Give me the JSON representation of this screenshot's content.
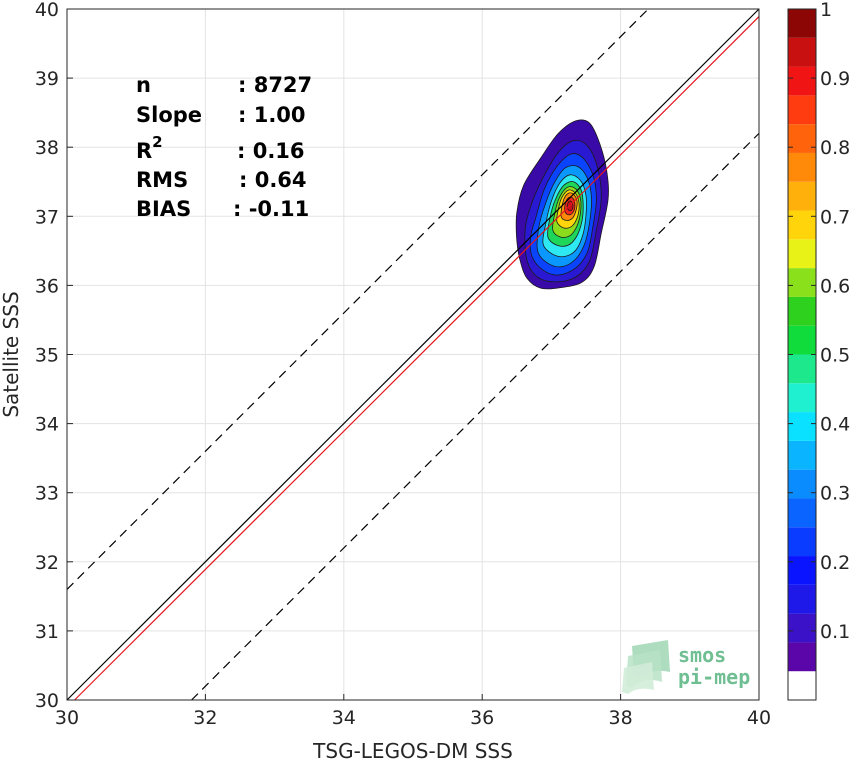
{
  "chart_data": {
    "type": "scatter",
    "subtype": "density-contour",
    "title": "",
    "xlabel": "TSG-LEGOS-DM SSS",
    "ylabel": "Satellite SSS",
    "xlim": [
      30,
      40
    ],
    "ylim": [
      30,
      40
    ],
    "xticks": [
      "30",
      "32",
      "34",
      "36",
      "38",
      "40"
    ],
    "yticks": [
      "30",
      "31",
      "32",
      "33",
      "34",
      "35",
      "36",
      "37",
      "38",
      "39",
      "40"
    ],
    "grid": true,
    "stats": [
      {
        "label": "n",
        "value": ": 8727"
      },
      {
        "label": "Slope",
        "value": ": 1.00"
      },
      {
        "label": "R",
        "superscript": "2",
        "value": ": 0.16"
      },
      {
        "label": "RMS",
        "value": ": 0.64"
      },
      {
        "label": "BIAS",
        "value": ": -0.11"
      }
    ],
    "lines": [
      {
        "name": "identity",
        "color": "#000000",
        "style": "solid",
        "slope": 1,
        "intercept": 0
      },
      {
        "name": "regression",
        "color": "#e8141c",
        "style": "solid",
        "slope": 1.0,
        "intercept": -0.11
      },
      {
        "name": "upper-bound",
        "color": "#000000",
        "style": "dashed",
        "slope": 1,
        "intercept": 1.6
      },
      {
        "name": "lower-bound",
        "color": "#000000",
        "style": "dashed",
        "slope": 1,
        "intercept": -1.8
      }
    ],
    "density": {
      "center": [
        37.3,
        37.2
      ],
      "levels": [
        0.05,
        0.1,
        0.15,
        0.2,
        0.25,
        0.3,
        0.35,
        0.4,
        0.45,
        0.5,
        0.55,
        0.6,
        0.65,
        0.7,
        0.75,
        0.8,
        0.85,
        0.9,
        0.95
      ],
      "level_colors": [
        "#3a0aa8",
        "#2a19d2",
        "#1c28f0",
        "#0a44ff",
        "#0a6cff",
        "#0a98ff",
        "#10c8ff",
        "#2ee8f2",
        "#22e8b0",
        "#1ed65a",
        "#2ec82a",
        "#8adc1c",
        "#e8f01c",
        "#ffd60a",
        "#ffb008",
        "#ff8a0a",
        "#ff5a0e",
        "#f2261c",
        "#c8101a"
      ],
      "contours": [
        {
          "level": 0.05,
          "outline": [
            [
              36.55,
              36.35
            ],
            [
              36.65,
              36.1
            ],
            [
              36.85,
              35.96
            ],
            [
              37.15,
              35.97
            ],
            [
              37.45,
              36.05
            ],
            [
              37.62,
              36.28
            ],
            [
              37.72,
              36.75
            ],
            [
              37.82,
              37.25
            ],
            [
              37.8,
              37.65
            ],
            [
              37.7,
              38.05
            ],
            [
              37.55,
              38.35
            ],
            [
              37.35,
              38.38
            ],
            [
              37.1,
              38.2
            ],
            [
              36.85,
              37.85
            ],
            [
              36.6,
              37.45
            ],
            [
              36.5,
              37.05
            ],
            [
              36.5,
              36.65
            ]
          ]
        },
        {
          "level": 0.1,
          "outline": [
            [
              36.65,
              36.35
            ],
            [
              36.8,
              36.12
            ],
            [
              37.05,
              36.05
            ],
            [
              37.35,
              36.12
            ],
            [
              37.55,
              36.35
            ],
            [
              37.65,
              36.8
            ],
            [
              37.72,
              37.25
            ],
            [
              37.68,
              37.65
            ],
            [
              37.55,
              37.98
            ],
            [
              37.35,
              38.1
            ],
            [
              37.12,
              37.95
            ],
            [
              36.9,
              37.6
            ],
            [
              36.72,
              37.2
            ],
            [
              36.62,
              36.8
            ]
          ]
        },
        {
          "level": 0.2,
          "outline": [
            [
              36.72,
              36.42
            ],
            [
              36.88,
              36.22
            ],
            [
              37.1,
              36.15
            ],
            [
              37.35,
              36.25
            ],
            [
              37.52,
              36.48
            ],
            [
              37.6,
              36.85
            ],
            [
              37.65,
              37.25
            ],
            [
              37.6,
              37.6
            ],
            [
              37.45,
              37.85
            ],
            [
              37.28,
              37.9
            ],
            [
              37.08,
              37.72
            ],
            [
              36.9,
              37.4
            ],
            [
              36.78,
              37.0
            ],
            [
              36.7,
              36.7
            ]
          ]
        },
        {
          "level": 0.3,
          "outline": [
            [
              36.8,
              36.5
            ],
            [
              36.95,
              36.32
            ],
            [
              37.15,
              36.27
            ],
            [
              37.35,
              36.38
            ],
            [
              37.48,
              36.6
            ],
            [
              37.55,
              36.9
            ],
            [
              37.58,
              37.25
            ],
            [
              37.52,
              37.55
            ],
            [
              37.38,
              37.72
            ],
            [
              37.2,
              37.7
            ],
            [
              37.05,
              37.5
            ],
            [
              36.92,
              37.2
            ],
            [
              36.82,
              36.85
            ]
          ]
        },
        {
          "level": 0.4,
          "outline": [
            [
              36.88,
              36.6
            ],
            [
              37.02,
              36.45
            ],
            [
              37.2,
              36.42
            ],
            [
              37.36,
              36.52
            ],
            [
              37.46,
              36.75
            ],
            [
              37.5,
              37.02
            ],
            [
              37.5,
              37.3
            ],
            [
              37.42,
              37.52
            ],
            [
              37.27,
              37.6
            ],
            [
              37.12,
              37.48
            ],
            [
              37.0,
              37.22
            ],
            [
              36.92,
              36.9
            ]
          ]
        },
        {
          "level": 0.5,
          "outline": [
            [
              36.95,
              36.7
            ],
            [
              37.08,
              36.58
            ],
            [
              37.24,
              36.58
            ],
            [
              37.36,
              36.7
            ],
            [
              37.44,
              36.92
            ],
            [
              37.46,
              37.15
            ],
            [
              37.43,
              37.38
            ],
            [
              37.32,
              37.5
            ],
            [
              37.18,
              37.45
            ],
            [
              37.06,
              37.25
            ],
            [
              36.98,
              36.98
            ]
          ]
        },
        {
          "level": 0.6,
          "outline": [
            [
              37.02,
              36.8
            ],
            [
              37.13,
              36.7
            ],
            [
              37.27,
              36.72
            ],
            [
              37.37,
              36.86
            ],
            [
              37.42,
              37.05
            ],
            [
              37.42,
              37.25
            ],
            [
              37.35,
              37.4
            ],
            [
              37.23,
              37.42
            ],
            [
              37.12,
              37.28
            ],
            [
              37.05,
              37.05
            ]
          ]
        },
        {
          "level": 0.7,
          "outline": [
            [
              37.08,
              36.92
            ],
            [
              37.18,
              36.83
            ],
            [
              37.3,
              36.86
            ],
            [
              37.38,
              37.0
            ],
            [
              37.4,
              37.18
            ],
            [
              37.35,
              37.33
            ],
            [
              37.25,
              37.38
            ],
            [
              37.15,
              37.27
            ],
            [
              37.1,
              37.1
            ]
          ]
        },
        {
          "level": 0.8,
          "outline": [
            [
              37.14,
              37.0
            ],
            [
              37.22,
              36.94
            ],
            [
              37.31,
              36.98
            ],
            [
              37.36,
              37.1
            ],
            [
              37.37,
              37.22
            ],
            [
              37.32,
              37.32
            ],
            [
              37.24,
              37.33
            ],
            [
              37.17,
              37.22
            ]
          ]
        },
        {
          "level": 0.9,
          "outline": [
            [
              37.2,
              37.06
            ],
            [
              37.26,
              37.02
            ],
            [
              37.32,
              37.07
            ],
            [
              37.34,
              37.17
            ],
            [
              37.31,
              37.26
            ],
            [
              37.25,
              37.27
            ],
            [
              37.2,
              37.18
            ]
          ]
        },
        {
          "level": 0.95,
          "outline": [
            [
              37.24,
              37.1
            ],
            [
              37.28,
              37.08
            ],
            [
              37.31,
              37.13
            ],
            [
              37.3,
              37.2
            ],
            [
              37.26,
              37.22
            ],
            [
              37.23,
              37.16
            ]
          ]
        }
      ]
    },
    "colorbar": {
      "range": [
        0,
        1
      ],
      "ticks": [
        "0.1",
        "0.2",
        "0.3",
        "0.4",
        "0.5",
        "0.6",
        "0.7",
        "0.8",
        "0.9",
        "1"
      ],
      "segments": [
        "#ffffff",
        "#5a06a8",
        "#3c12c8",
        "#1e18e8",
        "#0a14ff",
        "#0a3cff",
        "#0a64ff",
        "#0a8cff",
        "#0ab4ff",
        "#0ae0ff",
        "#1ef0d0",
        "#1ee88c",
        "#10dc3c",
        "#2ed21e",
        "#8ae01a",
        "#e8f216",
        "#ffd40a",
        "#ffb00a",
        "#ff8a0a",
        "#ff640c",
        "#ff3c10",
        "#f01414",
        "#c81010",
        "#8c0606"
      ]
    },
    "logo": {
      "line1": "smos",
      "line2": "pi-mep",
      "color": "#6fbf93"
    }
  }
}
